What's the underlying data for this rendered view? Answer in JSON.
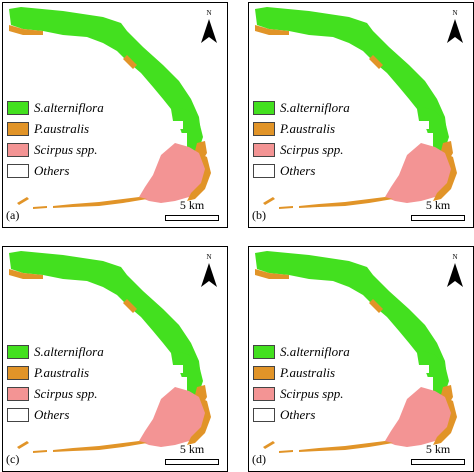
{
  "legend": [
    {
      "label": "S.alterniflora",
      "color": "#43e01f"
    },
    {
      "label": "P.australis",
      "color": "#e19428"
    },
    {
      "label": "Scirpus spp.",
      "color": "#f39494"
    },
    {
      "label": "Others",
      "color": "#ffffff"
    }
  ],
  "scale_label": "5 km",
  "north_label": "N",
  "panels": [
    {
      "label": "(a)"
    },
    {
      "label": "(b)"
    },
    {
      "label": "(c)"
    },
    {
      "label": "(d)"
    }
  ]
}
